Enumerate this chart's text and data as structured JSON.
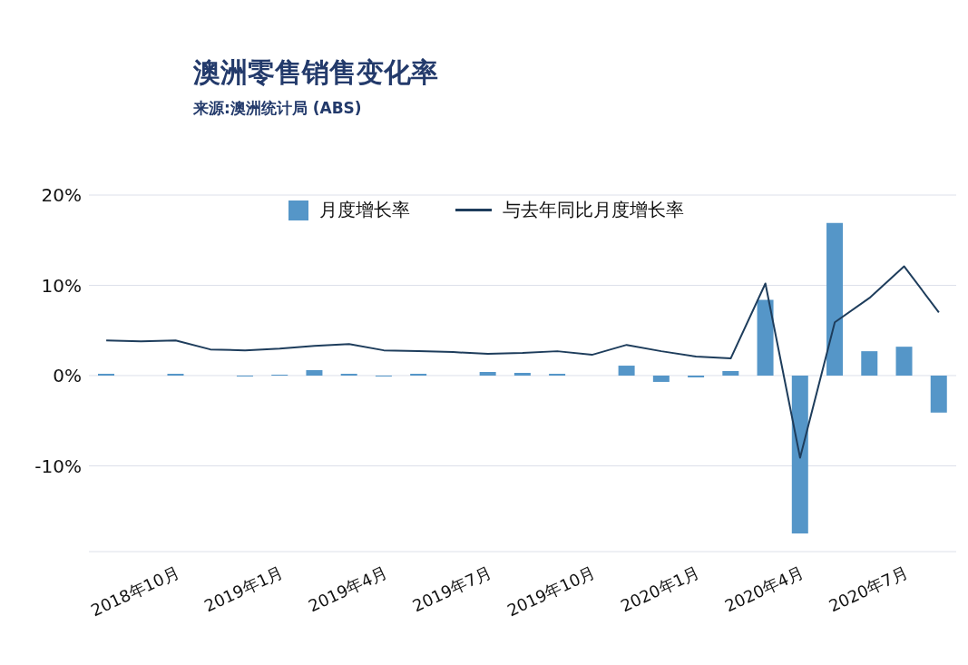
{
  "chart_data": {
    "type": "bar",
    "title": "澳洲零售销售变化率",
    "subtitle": "来源:澳洲统计局 (ABS)",
    "categories": [
      null,
      null,
      "2018年10月",
      null,
      null,
      "2019年1月",
      null,
      null,
      "2019年4月",
      null,
      null,
      "2019年7月",
      null,
      null,
      "2019年10月",
      null,
      null,
      "2020年1月",
      null,
      null,
      "2020年4月",
      null,
      null,
      "2020年7月",
      null
    ],
    "series": [
      {
        "name": "月度增长率",
        "color": "#5596c8",
        "values": [
          0.2,
          0,
          0.2,
          0,
          -0.1,
          0.1,
          0.6,
          0.2,
          -0.1,
          0.2,
          0,
          0.4,
          0.3,
          0.2,
          0,
          1.1,
          -0.7,
          -0.2,
          0.5,
          8.4,
          -17.5,
          16.9,
          2.7,
          3.2,
          -4.1
        ]
      },
      {
        "name": "与去年同比月度增长率",
        "type": "line",
        "color": "#1e3d5c",
        "values": [
          3.9,
          3.8,
          3.9,
          2.9,
          2.8,
          3.0,
          3.3,
          3.5,
          2.8,
          2.7,
          2.6,
          2.4,
          2.5,
          2.7,
          2.3,
          3.4,
          2.7,
          2.1,
          1.9,
          10.2,
          -9.1,
          5.9,
          8.6,
          12.1,
          7.0
        ]
      }
    ],
    "ylim": [
      -19.5,
      20
    ],
    "yticks": [
      {
        "value": -10,
        "label": "-10%"
      },
      {
        "value": 0,
        "label": "0%"
      },
      {
        "value": 10,
        "label": "10%"
      },
      {
        "value": 20,
        "label": "20%"
      }
    ],
    "grid": "y",
    "legend": "top",
    "marker": "none"
  }
}
